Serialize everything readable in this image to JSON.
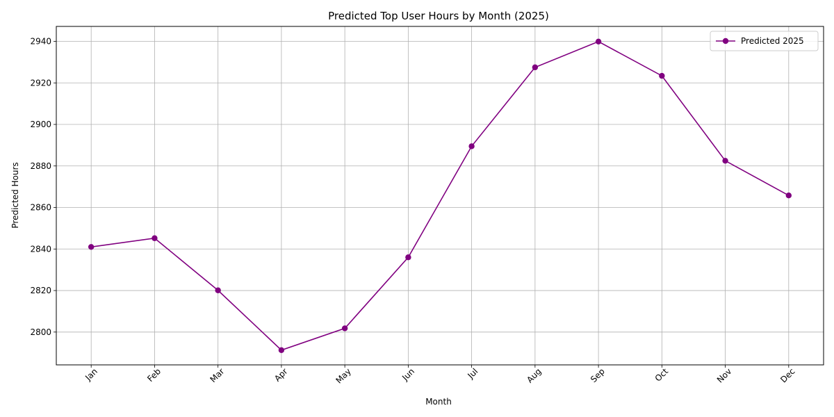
{
  "chart_data": {
    "type": "line",
    "title": "Predicted Top User Hours by Month (2025)",
    "xlabel": "Month",
    "ylabel": "Predicted Hours",
    "categories": [
      "Jan",
      "Feb",
      "Mar",
      "Apr",
      "May",
      "Jun",
      "Jul",
      "Aug",
      "Sep",
      "Oct",
      "Nov",
      "Dec"
    ],
    "series": [
      {
        "name": "Predicted 2025",
        "values": [
          2841,
          2845.2,
          2820.1,
          2791.3,
          2801.8,
          2836,
          2889.5,
          2927.5,
          2939.9,
          2923.4,
          2882.5,
          2865.8
        ],
        "color": "#800080",
        "marker": "circle"
      }
    ],
    "ylim": [
      2784.2,
      2947.2
    ],
    "yticks": [
      2800,
      2820,
      2840,
      2860,
      2880,
      2900,
      2920,
      2940
    ],
    "grid": true,
    "legend_position": "top-right",
    "xtick_rotation": 45
  }
}
